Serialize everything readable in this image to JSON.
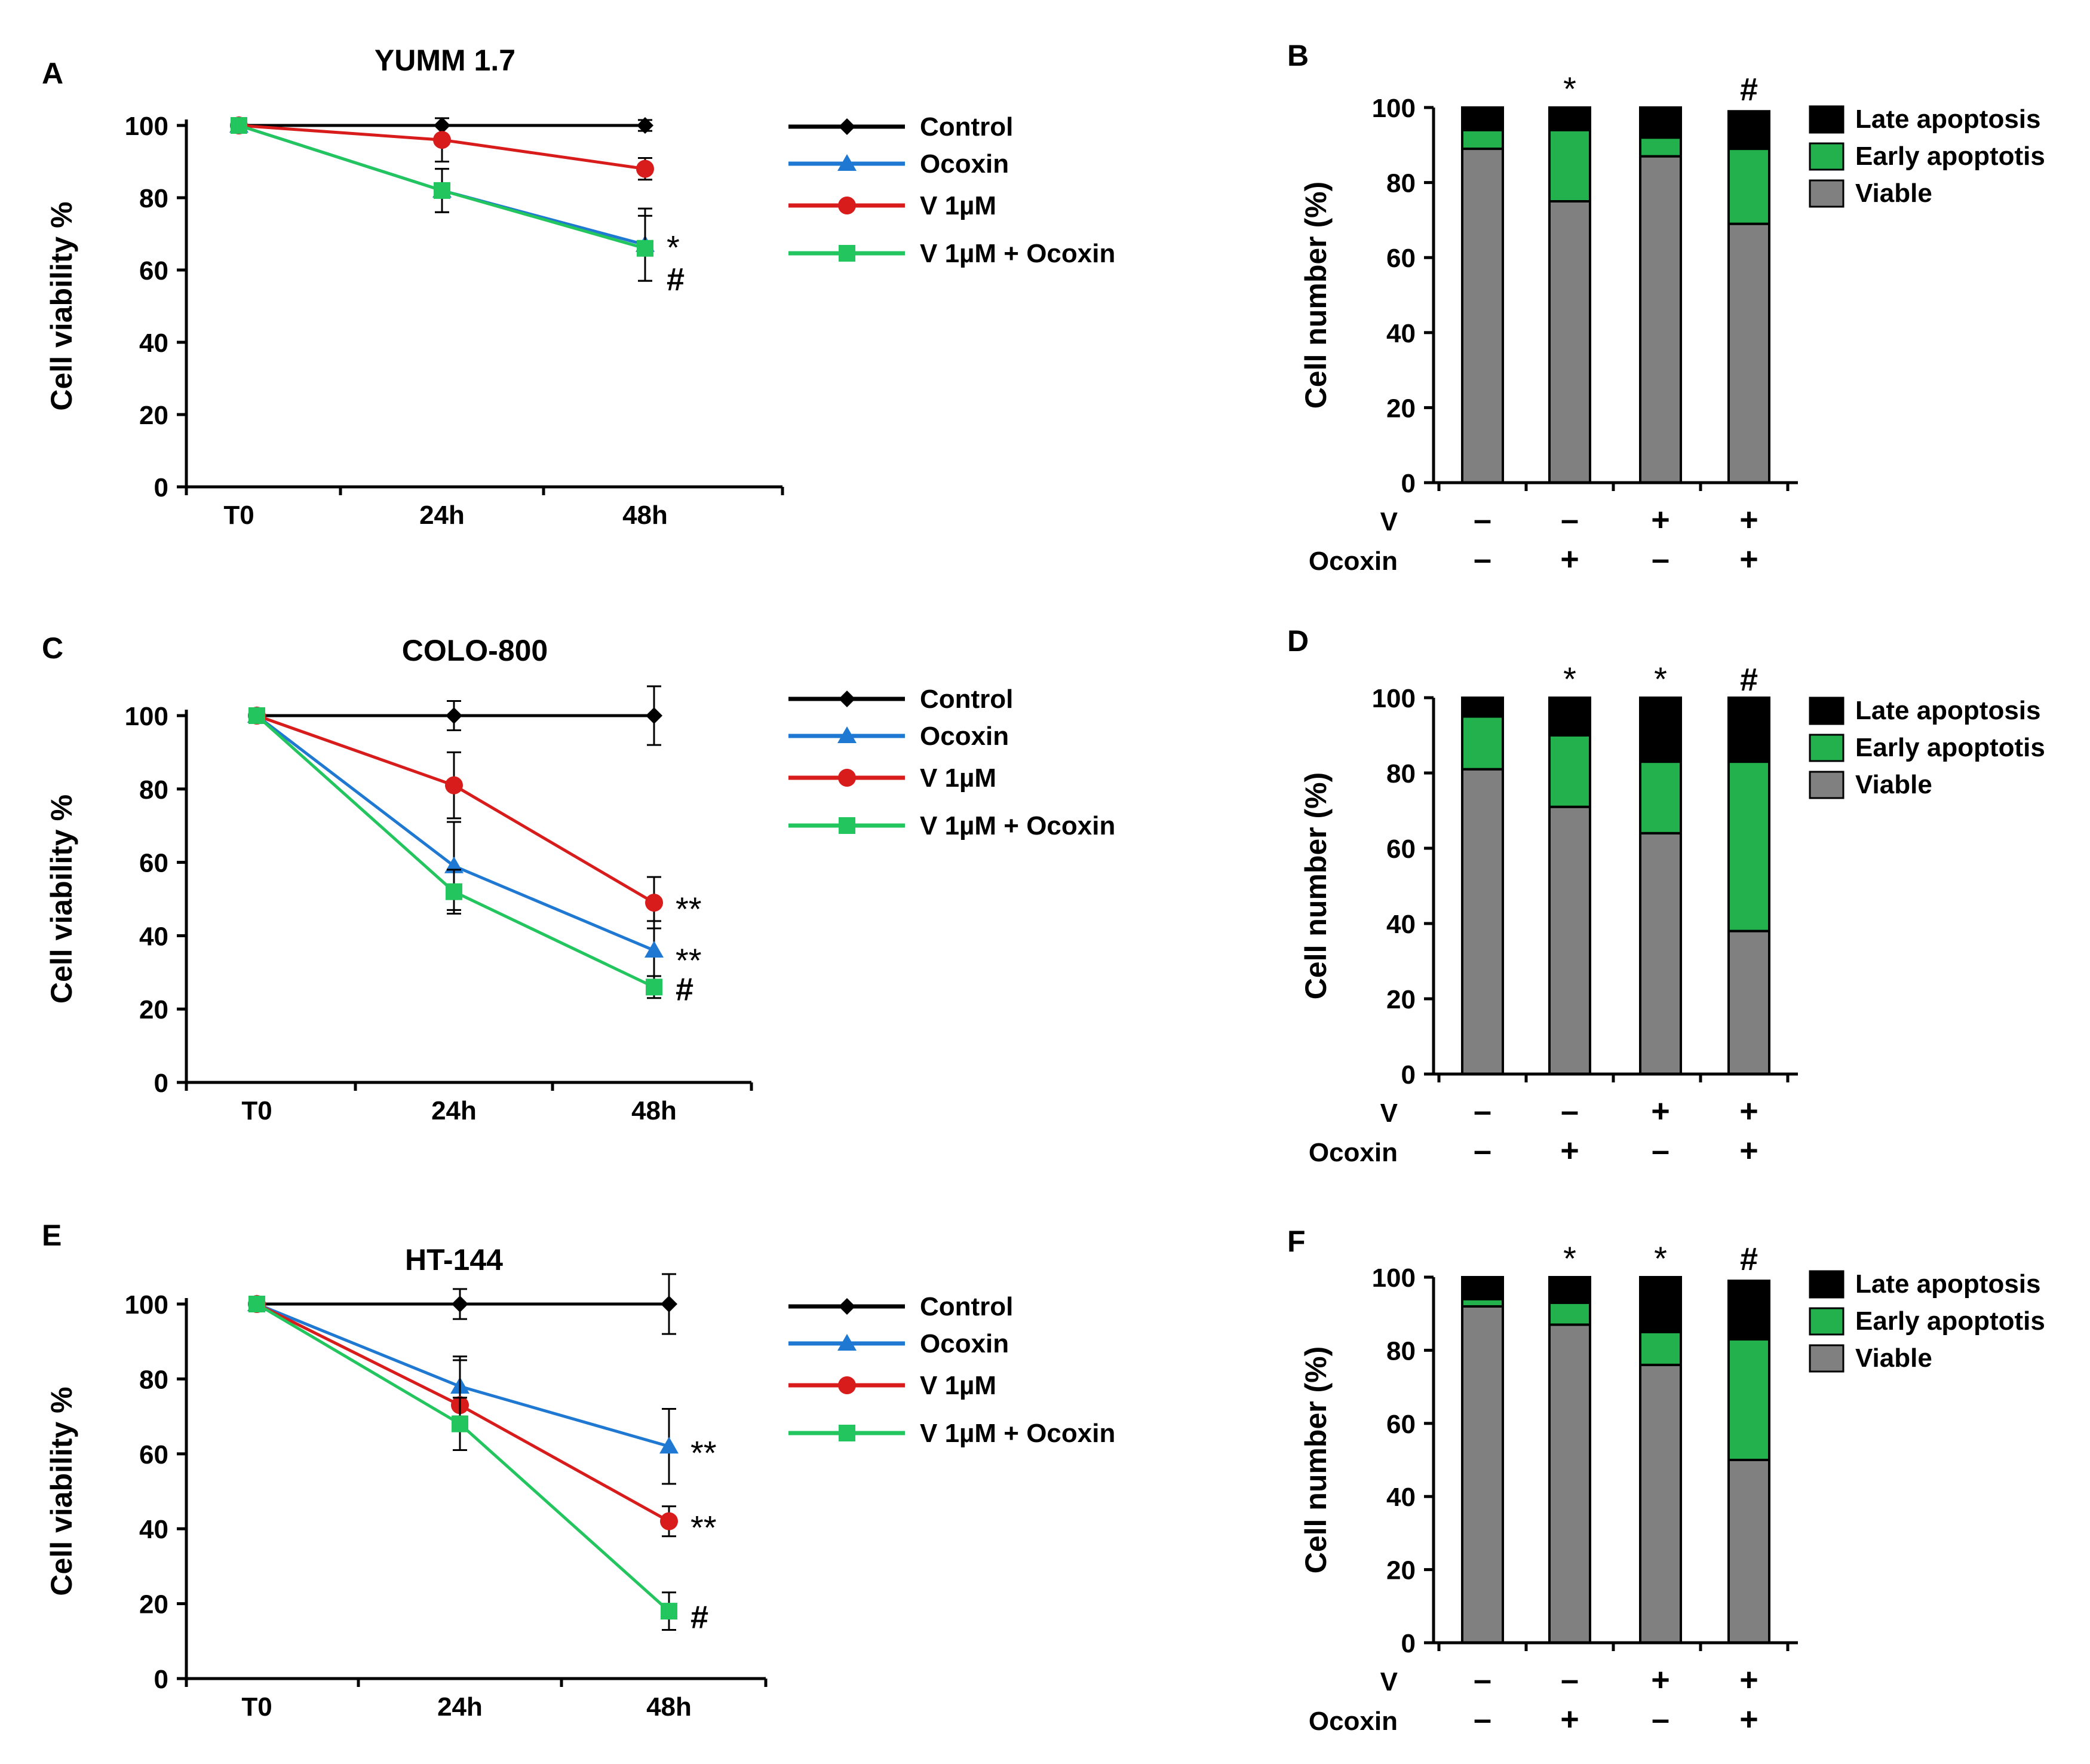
{
  "figure_labels": [
    "A",
    "B",
    "C",
    "D",
    "E",
    "F"
  ],
  "chart_data": [
    {
      "panel": "A",
      "type": "line",
      "title": "YUMM 1.7",
      "ylabel": "Cell viability %",
      "xlabel": "",
      "categories": [
        "T0",
        "24h",
        "48h"
      ],
      "ylim": [
        0,
        100
      ],
      "yticks": [
        0,
        20,
        40,
        60,
        80,
        100
      ],
      "series": [
        {
          "name": "Control",
          "color": "#000000",
          "marker": "diamond",
          "values": [
            100,
            100,
            100
          ],
          "errors": [
            0,
            0,
            1.5
          ]
        },
        {
          "name": "Ocoxin",
          "color": "#1f78d1",
          "marker": "triangle",
          "values": [
            100,
            82,
            67
          ],
          "errors": [
            0,
            6,
            10
          ]
        },
        {
          "name": "V 1µM",
          "color": "#d81b1b",
          "marker": "circle",
          "values": [
            100,
            96,
            88
          ],
          "errors": [
            0,
            6,
            3
          ]
        },
        {
          "name": "V 1µM + Ocoxin",
          "color": "#22c55e",
          "marker": "square",
          "values": [
            100,
            82,
            66
          ],
          "errors": [
            0,
            6,
            9
          ]
        }
      ],
      "annotations": [
        {
          "text": "*",
          "category": "48h",
          "value": 68
        },
        {
          "text": "#",
          "category": "48h",
          "value": 58
        }
      ]
    },
    {
      "panel": "B",
      "type": "bar",
      "stacked": true,
      "ylabel": "Cell number (%)",
      "ylim": [
        0,
        100
      ],
      "yticks": [
        0,
        20,
        40,
        60,
        80,
        100
      ],
      "conditions": {
        "rows": [
          {
            "label": "V",
            "values": [
              "–",
              "–",
              "+",
              "+"
            ]
          },
          {
            "label": "Ocoxin",
            "values": [
              "–",
              "+",
              "–",
              "+"
            ]
          }
        ]
      },
      "series": [
        {
          "name": "Viable",
          "color": "#808080",
          "values": [
            89,
            75,
            87,
            69
          ]
        },
        {
          "name": "Early apoptotis",
          "color": "#22b14c",
          "values": [
            5,
            19,
            5,
            20
          ]
        },
        {
          "name": "Late apoptosis",
          "color": "#000000",
          "values": [
            6,
            6,
            8,
            10
          ]
        }
      ],
      "legend": [
        "Late apoptosis",
        "Early apoptotis",
        "Viable"
      ],
      "bar_marks": [
        "",
        "*",
        "",
        "#"
      ]
    },
    {
      "panel": "C",
      "type": "line",
      "title": "COLO-800",
      "ylabel": "Cell viability %",
      "xlabel": "",
      "categories": [
        "T0",
        "24h",
        "48h"
      ],
      "ylim": [
        0,
        100
      ],
      "yticks": [
        0,
        20,
        40,
        60,
        80,
        100
      ],
      "series": [
        {
          "name": "Control",
          "color": "#000000",
          "marker": "diamond",
          "values": [
            100,
            100,
            100
          ],
          "errors": [
            0,
            4,
            8
          ]
        },
        {
          "name": "Ocoxin",
          "color": "#1f78d1",
          "marker": "triangle",
          "values": [
            100,
            59,
            36
          ],
          "errors": [
            0,
            12,
            8
          ]
        },
        {
          "name": "V 1µM",
          "color": "#d81b1b",
          "marker": "circle",
          "values": [
            100,
            81,
            49
          ],
          "errors": [
            0,
            9,
            7
          ]
        },
        {
          "name": "V 1µM + Ocoxin",
          "color": "#22c55e",
          "marker": "square",
          "values": [
            100,
            52,
            26
          ],
          "errors": [
            0,
            6,
            3
          ]
        }
      ],
      "annotations": [
        {
          "text": "**",
          "category": "48h",
          "value": 49
        },
        {
          "text": "**",
          "category": "48h",
          "value": 35
        },
        {
          "text": "#",
          "category": "48h",
          "value": 26
        }
      ]
    },
    {
      "panel": "D",
      "type": "bar",
      "stacked": true,
      "ylabel": "Cell number (%)",
      "ylim": [
        0,
        100
      ],
      "yticks": [
        0,
        20,
        40,
        60,
        80,
        100
      ],
      "conditions": {
        "rows": [
          {
            "label": "V",
            "values": [
              "–",
              "–",
              "+",
              "+"
            ]
          },
          {
            "label": "Ocoxin",
            "values": [
              "–",
              "+",
              "–",
              "+"
            ]
          }
        ]
      },
      "series": [
        {
          "name": "Viable",
          "color": "#808080",
          "values": [
            81,
            71,
            64,
            38
          ]
        },
        {
          "name": "Early apoptotis",
          "color": "#22b14c",
          "values": [
            14,
            19,
            19,
            45
          ]
        },
        {
          "name": "Late apoptosis",
          "color": "#000000",
          "values": [
            5,
            10,
            17,
            17
          ]
        }
      ],
      "legend": [
        "Late apoptosis",
        "Early apoptotis",
        "Viable"
      ],
      "bar_marks": [
        "",
        "*",
        "*",
        "#"
      ]
    },
    {
      "panel": "E",
      "type": "line",
      "title": "HT-144",
      "ylabel": "Cell viability %",
      "xlabel": "",
      "categories": [
        "T0",
        "24h",
        "48h"
      ],
      "ylim": [
        0,
        100
      ],
      "yticks": [
        0,
        20,
        40,
        60,
        80,
        100
      ],
      "series": [
        {
          "name": "Control",
          "color": "#000000",
          "marker": "diamond",
          "values": [
            100,
            100,
            100
          ],
          "errors": [
            0,
            4,
            8
          ]
        },
        {
          "name": "Ocoxin",
          "color": "#1f78d1",
          "marker": "triangle",
          "values": [
            100,
            78,
            62
          ],
          "errors": [
            0,
            8,
            10
          ]
        },
        {
          "name": "V 1µM",
          "color": "#d81b1b",
          "marker": "circle",
          "values": [
            100,
            73,
            42
          ],
          "errors": [
            0,
            12,
            4
          ]
        },
        {
          "name": "V 1µM + Ocoxin",
          "color": "#22c55e",
          "marker": "square",
          "values": [
            100,
            68,
            18
          ],
          "errors": [
            0,
            7,
            5
          ]
        }
      ],
      "annotations": [
        {
          "text": "**",
          "category": "48h",
          "value": 62
        },
        {
          "text": "**",
          "category": "48h",
          "value": 42
        },
        {
          "text": "#",
          "category": "48h",
          "value": 17
        }
      ]
    },
    {
      "panel": "F",
      "type": "bar",
      "stacked": true,
      "ylabel": "Cell number (%)",
      "ylim": [
        0,
        100
      ],
      "yticks": [
        0,
        20,
        40,
        60,
        80,
        100
      ],
      "conditions": {
        "rows": [
          {
            "label": "V",
            "values": [
              "–",
              "–",
              "+",
              "+"
            ]
          },
          {
            "label": "Ocoxin",
            "values": [
              "–",
              "+",
              "–",
              "+"
            ]
          }
        ]
      },
      "series": [
        {
          "name": "Viable",
          "color": "#808080",
          "values": [
            92,
            87,
            76,
            50
          ]
        },
        {
          "name": "Early apoptotis",
          "color": "#22b14c",
          "values": [
            2,
            6,
            9,
            33
          ]
        },
        {
          "name": "Late apoptosis",
          "color": "#000000",
          "values": [
            6,
            7,
            15,
            16
          ]
        }
      ],
      "legend": [
        "Late apoptosis",
        "Early apoptotis",
        "Viable"
      ],
      "bar_marks": [
        "",
        "*",
        "*",
        "#"
      ]
    }
  ]
}
